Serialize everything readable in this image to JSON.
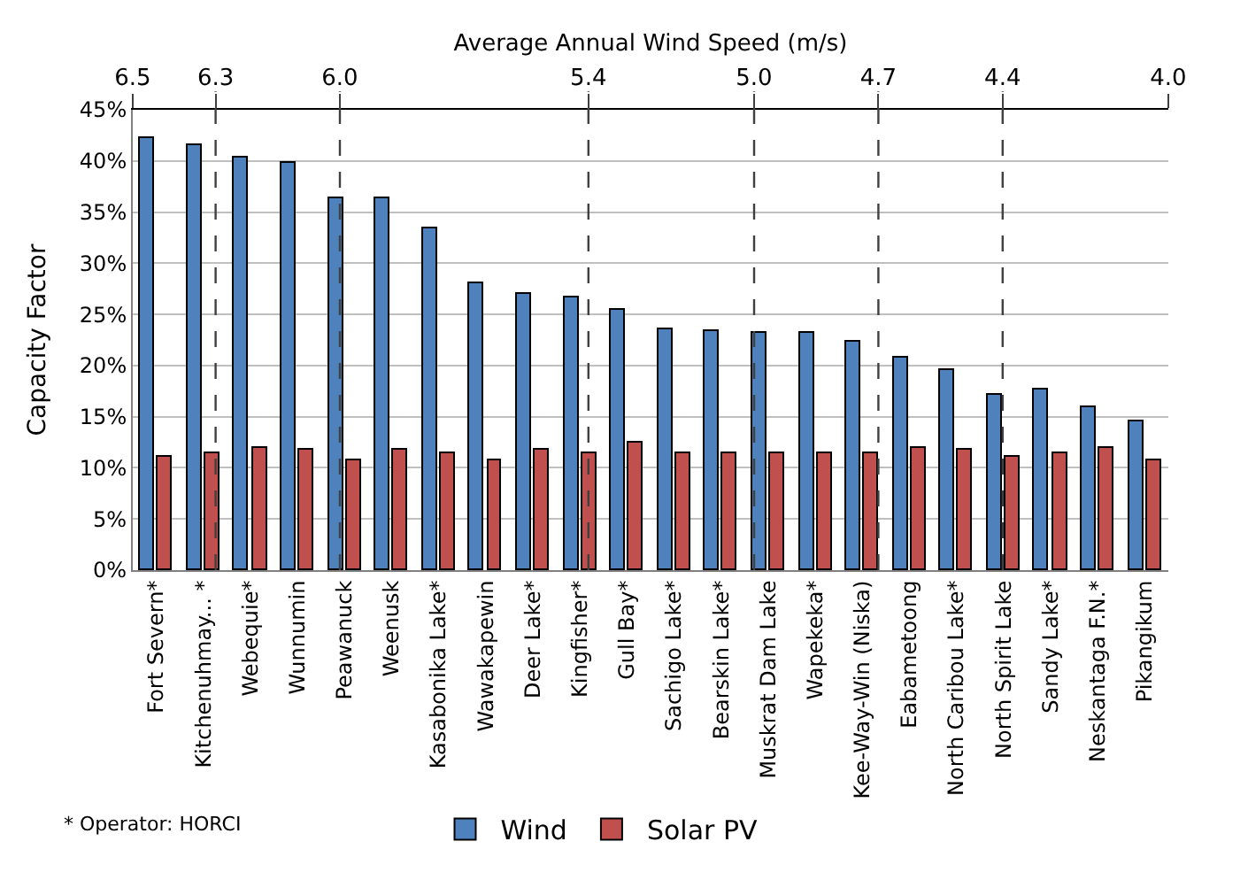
{
  "chart_data": {
    "type": "bar",
    "ylabel": "Capacity Factor",
    "x2label": "Average Annual Wind Speed (m/s)",
    "categories": [
      "Fort Severn*",
      "Kitchenuhmay... *",
      "Webequie*",
      "Wunnumin",
      "Peawanuck",
      "Weenusk",
      "Kasabonika Lake*",
      "Wawakapewin",
      "Deer Lake*",
      "Kingfisher*",
      "Gull Bay*",
      "Sachigo Lake*",
      "Bearskin Lake*",
      "Muskrat Dam Lake",
      "Wapekeka*",
      "Kee-Way-Win (Niska)",
      "Eabametoong",
      "North Caribou Lake*",
      "North Spirit Lake",
      "Sandy Lake*",
      "Neskantaga F.N.*",
      "Pikangikum"
    ],
    "series": [
      {
        "name": "Wind",
        "color": "#4f81bd",
        "values": [
          42.3,
          41.6,
          40.3,
          39.8,
          36.4,
          36.4,
          33.4,
          28.1,
          27.0,
          26.6,
          25.5,
          23.5,
          23.4,
          23.2,
          23.2,
          22.4,
          20.7,
          19.6,
          17.2,
          17.6,
          15.9,
          14.6
        ]
      },
      {
        "name": "Solar PV",
        "color": "#c0504d",
        "values": [
          11.1,
          11.5,
          11.9,
          11.7,
          10.8,
          11.7,
          11.5,
          10.8,
          11.7,
          11.5,
          12.4,
          11.5,
          11.5,
          11.5,
          11.5,
          11.5,
          11.9,
          11.7,
          11.0,
          11.5,
          11.9,
          10.8
        ]
      }
    ],
    "ylim": [
      0,
      45
    ],
    "yticks": [
      {
        "value": 0,
        "label": "0%"
      },
      {
        "value": 5,
        "label": "5%"
      },
      {
        "value": 10,
        "label": "10%"
      },
      {
        "value": 15,
        "label": "15%"
      },
      {
        "value": 20,
        "label": "20%"
      },
      {
        "value": 25,
        "label": "25%"
      },
      {
        "value": 30,
        "label": "30%"
      },
      {
        "value": 35,
        "label": "35%"
      },
      {
        "value": 40,
        "label": "40%"
      },
      {
        "value": 45,
        "label": "45%"
      }
    ],
    "x2lim": [
      6.5,
      4.0
    ],
    "x2ticks": [
      {
        "value": 6.5,
        "label": "6.5"
      },
      {
        "value": 6.3,
        "label": "6.3"
      },
      {
        "value": 6.0,
        "label": "6.0"
      },
      {
        "value": 5.4,
        "label": "5.4"
      },
      {
        "value": 5.0,
        "label": "5.0"
      },
      {
        "value": 4.7,
        "label": "4.7"
      },
      {
        "value": 4.4,
        "label": "4.4"
      },
      {
        "value": 4.0,
        "label": "4.0"
      }
    ],
    "ref_lines": [
      {
        "axis": "x2",
        "value": 6.3,
        "line_style": "dashed",
        "color": "#404040"
      },
      {
        "axis": "x2",
        "value": 6.0,
        "line_style": "dashed",
        "color": "#404040"
      },
      {
        "axis": "x2",
        "value": 5.4,
        "line_style": "dashed",
        "color": "#404040"
      },
      {
        "axis": "x2",
        "value": 5.0,
        "line_style": "dashed",
        "color": "#404040"
      },
      {
        "axis": "x2",
        "value": 4.7,
        "line_style": "dashed",
        "color": "#404040"
      },
      {
        "axis": "x2",
        "value": 4.4,
        "line_style": "dashed",
        "color": "#404040"
      }
    ],
    "annotations": [
      "* Operator: HORCI"
    ],
    "grid": "y",
    "legend": "bottom"
  }
}
